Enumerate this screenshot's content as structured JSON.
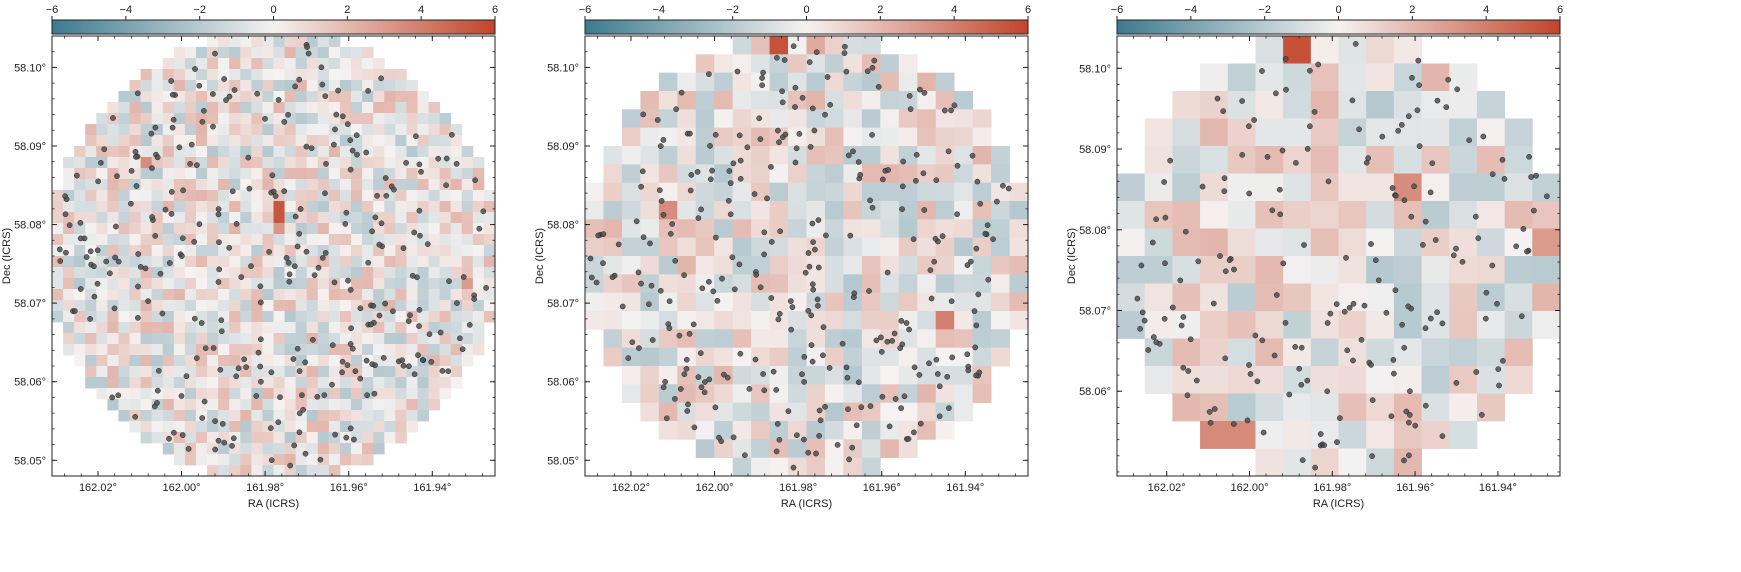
{
  "chart_data": [
    {
      "type": "heatmap",
      "xlabel": "RA (ICRS)",
      "ylabel": "Dec (ICRS)",
      "xlim": [
        162.031,
        161.925
      ],
      "ylim": [
        58.048,
        58.104
      ],
      "xticks": [
        162.02,
        162.0,
        161.98,
        161.96,
        161.94
      ],
      "xtick_labels": [
        "162.02°",
        "162.00°",
        "161.98°",
        "161.96°",
        "161.94°"
      ],
      "yticks": [
        58.05,
        58.06,
        58.07,
        58.08,
        58.09,
        58.1
      ],
      "ytick_labels": [
        "58.05°",
        "58.06°",
        "58.07°",
        "58.08°",
        "58.09°",
        "58.10°"
      ],
      "grid": false,
      "bins": 40,
      "seed": 11,
      "hot_cells": [
        [
          0.52,
          0.4,
          5.4
        ],
        [
          0.52,
          0.43,
          3.2
        ],
        [
          0.22,
          0.28,
          3.5
        ],
        [
          0.93,
          0.56,
          3.0
        ]
      ],
      "points": 300,
      "colorbar": {
        "min": -6,
        "max": 6,
        "ticks": [
          -6,
          -4,
          -2,
          0,
          2,
          4,
          6
        ],
        "position": "top"
      }
    },
    {
      "type": "heatmap",
      "xlabel": "RA (ICRS)",
      "ylabel": "Dec (ICRS)",
      "xlim": [
        162.031,
        161.925
      ],
      "ylim": [
        58.048,
        58.104
      ],
      "xticks": [
        162.02,
        162.0,
        161.98,
        161.96,
        161.94
      ],
      "xtick_labels": [
        "162.02°",
        "162.00°",
        "161.98°",
        "161.96°",
        "161.94°"
      ],
      "yticks": [
        58.05,
        58.06,
        58.07,
        58.08,
        58.09,
        58.1
      ],
      "ytick_labels": [
        "58.05°",
        "58.06°",
        "58.07°",
        "58.08°",
        "58.09°",
        "58.10°"
      ],
      "grid": false,
      "bins": 24,
      "seed": 23,
      "hot_cells": [
        [
          0.44,
          0.02,
          5.5
        ],
        [
          0.51,
          0.02,
          2.5
        ],
        [
          0.73,
          0.97,
          5.5
        ],
        [
          0.82,
          0.63,
          4.0
        ],
        [
          0.18,
          0.38,
          3.5
        ]
      ],
      "points": 300,
      "colorbar": {
        "min": -6,
        "max": 6,
        "ticks": [
          -6,
          -4,
          -2,
          0,
          2,
          4,
          6
        ],
        "position": "top"
      }
    },
    {
      "type": "heatmap",
      "xlabel": "RA (ICRS)",
      "ylabel": "Dec (ICRS)",
      "xlim": [
        162.032,
        161.925
      ],
      "ylim": [
        58.0495,
        58.104
      ],
      "xticks": [
        162.02,
        162.0,
        161.98,
        161.96,
        161.94
      ],
      "xtick_labels": [
        "162.02°",
        "162.00°",
        "161.98°",
        "161.96°",
        "161.94°"
      ],
      "yticks": [
        58.06,
        58.07,
        58.08,
        58.09,
        58.1
      ],
      "ytick_labels": [
        "58.06°",
        "58.07°",
        "58.08°",
        "58.09°",
        "58.10°"
      ],
      "grid": false,
      "bins": 16,
      "seed": 37,
      "hot_cells": [
        [
          0.4,
          0.02,
          5.6
        ],
        [
          0.25,
          0.88,
          3.6
        ],
        [
          0.63,
          0.32,
          3.5
        ],
        [
          0.97,
          0.48,
          3.0
        ]
      ],
      "points": 190,
      "colorbar": {
        "min": -6,
        "max": 6,
        "ticks": [
          -6,
          -4,
          -2,
          0,
          2,
          4,
          6
        ],
        "position": "top"
      }
    }
  ],
  "colors": {
    "cmap_negative": "#3d7a8f",
    "cmap_zero": "#f5f2f1",
    "cmap_positive": "#c0452b",
    "points_fill": "#4f4f4f",
    "points_stroke": "#222222",
    "axis": "#222222"
  }
}
